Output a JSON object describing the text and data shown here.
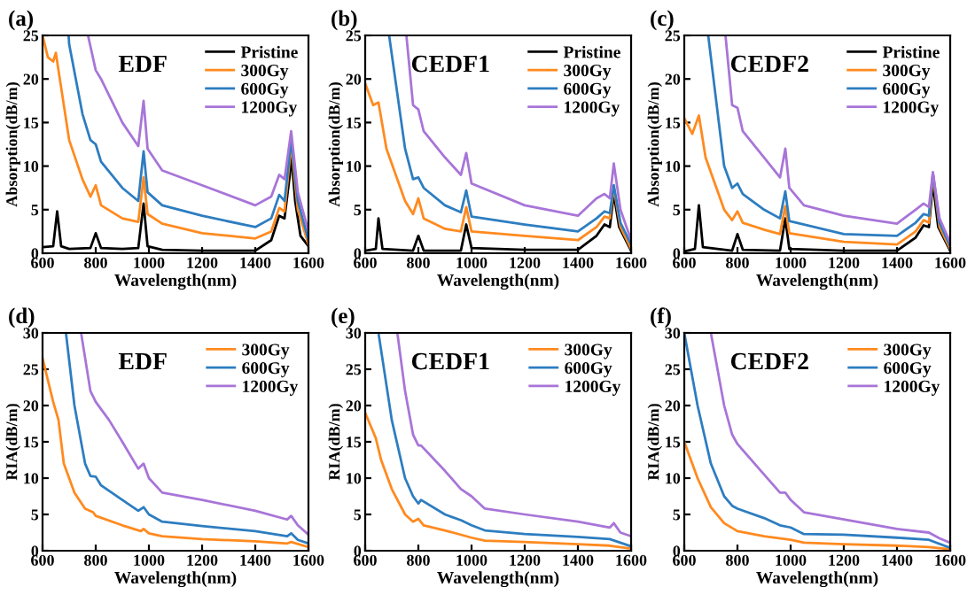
{
  "chart_data": [
    {
      "type": "line",
      "title": "(a)",
      "xlabel": "Wavelength(nm)",
      "ylabel": "Absorption(dB/m)",
      "annotations": [
        "EDF"
      ],
      "xlim": [
        600,
        1600
      ],
      "xticks": [
        600,
        800,
        1000,
        1200,
        1400,
        1600
      ],
      "ylim": [
        0,
        25
      ],
      "yticks": [
        0,
        5,
        10,
        15,
        20,
        25
      ],
      "legend": "top right",
      "grid": false,
      "series": [
        {
          "name": "Pristine",
          "color": "#000000",
          "x": [
            600,
            640,
            655,
            670,
            700,
            780,
            800,
            820,
            900,
            960,
            980,
            995,
            1050,
            1200,
            1400,
            1460,
            1490,
            1510,
            1530,
            1535,
            1550,
            1570,
            1600
          ],
          "values": [
            0.7,
            0.8,
            4.8,
            0.8,
            0.5,
            0.6,
            2.3,
            0.6,
            0.5,
            0.6,
            5.7,
            0.8,
            0.4,
            0.3,
            0.3,
            1.5,
            4.3,
            4.0,
            9.0,
            11.5,
            6,
            2,
            0.8
          ]
        },
        {
          "name": "300Gy",
          "color": "#ff8a1f",
          "x": [
            600,
            620,
            640,
            650,
            660,
            700,
            750,
            780,
            800,
            820,
            900,
            960,
            980,
            995,
            1050,
            1200,
            1400,
            1460,
            1490,
            1510,
            1535,
            1560,
            1600
          ],
          "values": [
            25,
            22.5,
            22,
            23,
            21,
            13,
            8.5,
            6.5,
            7.8,
            5.5,
            4,
            3.6,
            8.7,
            4.5,
            3.4,
            2.3,
            1.7,
            2.5,
            5.2,
            4.8,
            12.5,
            5,
            1
          ]
        },
        {
          "name": "600Gy",
          "color": "#2d7dc0",
          "x": [
            698,
            700,
            750,
            780,
            800,
            820,
            900,
            960,
            980,
            995,
            1050,
            1200,
            1400,
            1460,
            1490,
            1510,
            1535,
            1560,
            1600
          ],
          "values": [
            25,
            24,
            16,
            13,
            12.5,
            10.5,
            7.5,
            6,
            11.7,
            7,
            5.5,
            4.3,
            3,
            4,
            6.7,
            6,
            13,
            6,
            1.5
          ]
        },
        {
          "name": "1200Gy",
          "color": "#a875d8",
          "x": [
            771,
            800,
            820,
            900,
            960,
            980,
            995,
            1050,
            1200,
            1400,
            1460,
            1490,
            1510,
            1535,
            1560,
            1600
          ],
          "values": [
            25,
            21,
            20,
            15,
            12.3,
            17.5,
            12,
            9.5,
            7.8,
            5.5,
            6.5,
            9,
            8.5,
            14,
            7,
            2.5
          ]
        }
      ]
    },
    {
      "type": "line",
      "title": "(b)",
      "xlabel": "Wavelength(nm)",
      "ylabel": "Absorption(dB/m)",
      "annotations": [
        "CEDF1"
      ],
      "xlim": [
        600,
        1600
      ],
      "xticks": [
        600,
        800,
        1000,
        1200,
        1400,
        1600
      ],
      "ylim": [
        0,
        25
      ],
      "yticks": [
        0,
        5,
        10,
        15,
        20,
        25
      ],
      "legend": "top right",
      "grid": false,
      "series": [
        {
          "name": "Pristine",
          "color": "#000000",
          "x": [
            600,
            640,
            650,
            665,
            780,
            800,
            820,
            960,
            980,
            1000,
            1200,
            1400,
            1470,
            1500,
            1520,
            1535,
            1555,
            1600
          ],
          "values": [
            0.3,
            0.5,
            4,
            0.5,
            0.3,
            2,
            0.3,
            0.3,
            3.3,
            0.6,
            0.4,
            0.4,
            2,
            3.3,
            3,
            6.8,
            3,
            0.3
          ]
        },
        {
          "name": "300Gy",
          "color": "#ff8a1f",
          "x": [
            600,
            630,
            650,
            680,
            750,
            780,
            800,
            820,
            900,
            960,
            980,
            1000,
            1200,
            1400,
            1470,
            1500,
            1520,
            1535,
            1560,
            1600
          ],
          "values": [
            19.5,
            17,
            17.3,
            12,
            6,
            4.5,
            6.3,
            4,
            2.8,
            2.5,
            5.3,
            2.5,
            2,
            1.5,
            3,
            4.2,
            4,
            7.5,
            3,
            0.5
          ]
        },
        {
          "name": "600Gy",
          "color": "#2d7dc0",
          "x": [
            690,
            750,
            780,
            800,
            820,
            900,
            960,
            980,
            1000,
            1200,
            1400,
            1470,
            1500,
            1520,
            1535,
            1560,
            1600
          ],
          "values": [
            25,
            12,
            8.5,
            8.7,
            7.5,
            5.5,
            4.7,
            7.2,
            4.2,
            3.3,
            2.5,
            4,
            4.8,
            4.6,
            7.8,
            3.5,
            1
          ]
        },
        {
          "name": "1200Gy",
          "color": "#a875d8",
          "x": [
            755,
            780,
            800,
            820,
            900,
            960,
            980,
            1000,
            1200,
            1400,
            1470,
            1500,
            1520,
            1535,
            1560,
            1600
          ],
          "values": [
            25,
            17,
            16.5,
            14,
            11,
            9,
            11.5,
            8,
            5.5,
            4.3,
            6.3,
            6.8,
            6.3,
            10.3,
            5,
            1.5
          ]
        }
      ]
    },
    {
      "type": "line",
      "title": "(c)",
      "xlabel": "Wavelength(nm)",
      "ylabel": "Absorption(dB/m)",
      "annotations": [
        "CEDF2"
      ],
      "xlim": [
        600,
        1600
      ],
      "xticks": [
        600,
        800,
        1000,
        1200,
        1400,
        1600
      ],
      "ylim": [
        0,
        25
      ],
      "yticks": [
        0,
        5,
        10,
        15,
        20,
        25
      ],
      "legend": "top right",
      "grid": false,
      "series": [
        {
          "name": "Pristine",
          "color": "#000000",
          "x": [
            600,
            640,
            655,
            670,
            780,
            800,
            820,
            960,
            980,
            995,
            1200,
            1400,
            1470,
            1500,
            1520,
            1535,
            1555,
            1600
          ],
          "values": [
            0.2,
            0.5,
            5.5,
            0.7,
            0.3,
            2.2,
            0.4,
            0.3,
            4,
            0.5,
            0.3,
            0.3,
            1.8,
            3.2,
            3,
            8,
            3,
            0.3
          ]
        },
        {
          "name": "300Gy",
          "color": "#ff8a1f",
          "x": [
            600,
            630,
            655,
            680,
            750,
            780,
            800,
            820,
            900,
            960,
            980,
            995,
            1200,
            1400,
            1470,
            1500,
            1520,
            1535,
            1560,
            1600
          ],
          "values": [
            15.5,
            13.7,
            15.8,
            11,
            5,
            3.8,
            4.8,
            3.5,
            2.7,
            2.2,
            5.4,
            2.3,
            1.3,
            1.0,
            2.5,
            3.8,
            3.5,
            9,
            3,
            0.5
          ]
        },
        {
          "name": "600Gy",
          "color": "#2d7dc0",
          "x": [
            690,
            750,
            780,
            800,
            820,
            900,
            960,
            980,
            995,
            1200,
            1400,
            1470,
            1500,
            1520,
            1535,
            1560,
            1600
          ],
          "values": [
            25,
            10,
            7.5,
            8,
            6.8,
            5,
            4,
            7.1,
            3.7,
            2.2,
            2.0,
            3.5,
            4.5,
            4.3,
            9.2,
            3.5,
            0.8
          ]
        },
        {
          "name": "1200Gy",
          "color": "#a875d8",
          "x": [
            755,
            780,
            800,
            820,
            900,
            960,
            980,
            995,
            1050,
            1200,
            1400,
            1470,
            1500,
            1520,
            1535,
            1560,
            1600
          ],
          "values": [
            25,
            17,
            16.7,
            14,
            11,
            8.7,
            12,
            7.5,
            5.5,
            4.3,
            3.4,
            5,
            5.7,
            5.3,
            9.3,
            4,
            1.2
          ]
        }
      ]
    },
    {
      "type": "line",
      "title": "(d)",
      "xlabel": "Wavelength(nm)",
      "ylabel": "RIA(dB/m)",
      "annotations": [
        "EDF"
      ],
      "xlim": [
        600,
        1600
      ],
      "xticks": [
        600,
        800,
        1000,
        1200,
        1400,
        1600
      ],
      "ylim": [
        0,
        30
      ],
      "yticks": [
        0,
        5,
        10,
        15,
        20,
        25,
        30
      ],
      "legend": "top right",
      "grid": false,
      "series": [
        {
          "name": "300Gy",
          "color": "#ff8a1f",
          "x": [
            600,
            640,
            660,
            680,
            720,
            760,
            790,
            800,
            900,
            970,
            980,
            1000,
            1050,
            1200,
            1400,
            1520,
            1535,
            1600
          ],
          "values": [
            26.5,
            20.5,
            18,
            12,
            8,
            5.8,
            5.3,
            4.8,
            3.5,
            2.7,
            3,
            2.4,
            2,
            1.6,
            1.3,
            1,
            1.2,
            0.5
          ]
        },
        {
          "name": "600Gy",
          "color": "#2d7dc0",
          "x": [
            688,
            720,
            760,
            780,
            800,
            820,
            900,
            960,
            980,
            1000,
            1050,
            1200,
            1400,
            1520,
            1535,
            1560,
            1600
          ],
          "values": [
            30,
            20,
            12,
            10.3,
            10.2,
            9,
            7,
            5.5,
            6,
            5,
            4,
            3.4,
            2.7,
            2,
            2.4,
            1.5,
            1
          ]
        },
        {
          "name": "1200Gy",
          "color": "#a875d8",
          "x": [
            745,
            780,
            800,
            850,
            900,
            960,
            980,
            1000,
            1050,
            1200,
            1400,
            1520,
            1535,
            1560,
            1600
          ],
          "values": [
            30,
            22,
            20.5,
            18,
            15,
            11.3,
            12,
            10,
            8,
            7,
            5.5,
            4.3,
            4.8,
            3.5,
            2.2
          ]
        }
      ]
    },
    {
      "type": "line",
      "title": "(e)",
      "xlabel": "Wavelength(nm)",
      "ylabel": "RIA(dB/m)",
      "annotations": [
        "CEDF1"
      ],
      "xlim": [
        600,
        1600
      ],
      "xticks": [
        600,
        800,
        1000,
        1200,
        1400,
        1600
      ],
      "ylim": [
        0,
        30
      ],
      "yticks": [
        0,
        5,
        10,
        15,
        20,
        25,
        30
      ],
      "legend": "top right",
      "grid": false,
      "series": [
        {
          "name": "300Gy",
          "color": "#ff8a1f",
          "x": [
            600,
            640,
            660,
            700,
            750,
            780,
            800,
            820,
            900,
            1000,
            1050,
            1200,
            1400,
            1520,
            1600
          ],
          "values": [
            19,
            15.5,
            12.5,
            8.5,
            5,
            4,
            4.4,
            3.5,
            2.8,
            1.8,
            1.4,
            1.2,
            0.9,
            0.7,
            0.3
          ]
        },
        {
          "name": "600Gy",
          "color": "#2d7dc0",
          "x": [
            650,
            700,
            750,
            780,
            800,
            810,
            900,
            960,
            1000,
            1050,
            1200,
            1400,
            1520,
            1600
          ],
          "values": [
            30,
            18,
            10,
            7.5,
            6.5,
            7,
            5,
            4.2,
            3.5,
            2.8,
            2.3,
            1.9,
            1.6,
            0.6
          ]
        },
        {
          "name": "1200Gy",
          "color": "#a875d8",
          "x": [
            721,
            750,
            780,
            800,
            810,
            900,
            960,
            1000,
            1050,
            1200,
            1400,
            1520,
            1535,
            1560,
            1600
          ],
          "values": [
            30,
            22,
            16,
            14.5,
            14.5,
            11,
            8.5,
            7.5,
            5.8,
            5,
            4,
            3.2,
            3.8,
            2.5,
            2
          ]
        }
      ]
    },
    {
      "type": "line",
      "title": "(f)",
      "xlabel": "Wavelength(nm)",
      "ylabel": "RIA(dB/m)",
      "annotations": [
        "CEDF2"
      ],
      "xlim": [
        600,
        1600
      ],
      "xticks": [
        600,
        800,
        1000,
        1200,
        1400,
        1600
      ],
      "ylim": [
        0,
        30
      ],
      "yticks": [
        0,
        5,
        10,
        15,
        20,
        25,
        30
      ],
      "legend": "top right",
      "grid": false,
      "series": [
        {
          "name": "300Gy",
          "color": "#ff8a1f",
          "x": [
            600,
            650,
            700,
            750,
            800,
            900,
            1000,
            1050,
            1200,
            1400,
            1520,
            1600
          ],
          "values": [
            15,
            10,
            6,
            3.8,
            2.7,
            2,
            1.5,
            1.1,
            0.9,
            0.7,
            0.5,
            0.2
          ]
        },
        {
          "name": "600Gy",
          "color": "#2d7dc0",
          "x": [
            600,
            650,
            700,
            750,
            780,
            800,
            900,
            960,
            1000,
            1050,
            1200,
            1400,
            1520,
            1600
          ],
          "values": [
            30,
            20,
            12,
            7.5,
            6.2,
            5.8,
            4.5,
            3.5,
            3.2,
            2.3,
            2.2,
            1.8,
            1.5,
            0.4
          ]
        },
        {
          "name": "1200Gy",
          "color": "#a875d8",
          "x": [
            700,
            750,
            780,
            800,
            900,
            960,
            980,
            1000,
            1050,
            1200,
            1400,
            1520,
            1560,
            1600
          ],
          "values": [
            30,
            20,
            16,
            14.7,
            10.5,
            8,
            8,
            7,
            5.3,
            4.3,
            3,
            2.5,
            1.7,
            1.1
          ]
        }
      ]
    }
  ]
}
